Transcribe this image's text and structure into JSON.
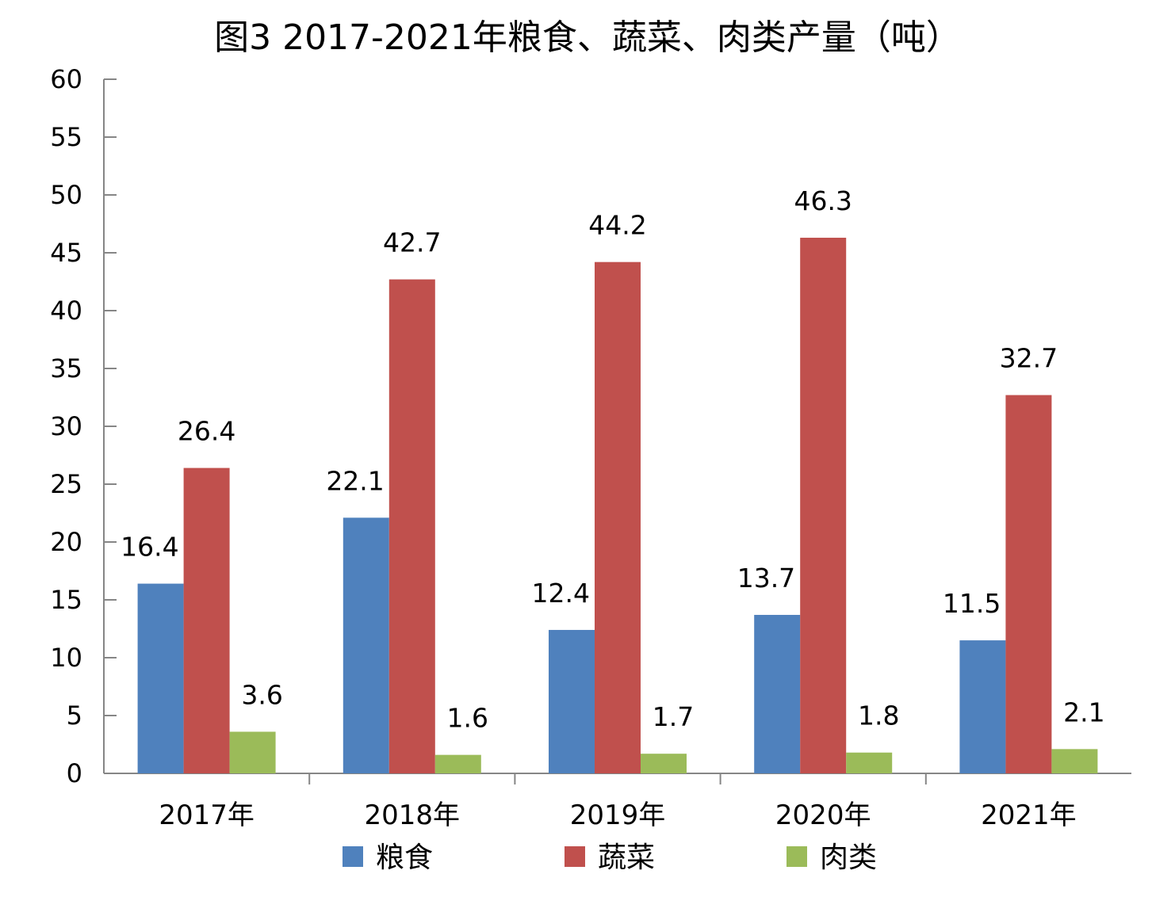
{
  "chart_data": {
    "type": "bar",
    "title": "图3  2017-2021年粮食、蔬菜、肉类产量（吨）",
    "xlabel": "",
    "ylabel": "",
    "categories": [
      "2017年",
      "2018年",
      "2019年",
      "2020年",
      "2021年"
    ],
    "series": [
      {
        "name": "粮食",
        "color": "#4F81BD",
        "values": [
          16.4,
          22.1,
          12.4,
          13.7,
          11.5
        ]
      },
      {
        "name": "蔬菜",
        "color": "#C0504D",
        "values": [
          26.4,
          42.7,
          44.2,
          46.3,
          32.7
        ]
      },
      {
        "name": "肉类",
        "color": "#9BBB59",
        "values": [
          3.6,
          1.6,
          1.7,
          1.8,
          2.1
        ]
      }
    ],
    "ylim": [
      0,
      60
    ],
    "yticks": [
      0,
      5,
      10,
      15,
      20,
      25,
      30,
      35,
      40,
      45,
      50,
      55,
      60
    ],
    "grid": false,
    "legend_position": "bottom",
    "data_labels": true
  }
}
